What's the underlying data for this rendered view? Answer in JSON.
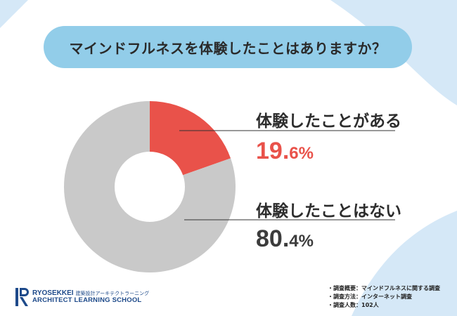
{
  "title": "マインドフルネスを体験したことはありますか？",
  "chart_data": {
    "type": "pie",
    "labels": [
      "体験したことがある",
      "体験したことはない"
    ],
    "values": [
      19.6,
      80.4
    ],
    "colors": [
      "#e9524a",
      "#c9c9c9"
    ],
    "value_labels": [
      {
        "main": "19.",
        "decimal": "6%",
        "color": "#e9524a"
      },
      {
        "main": "80.",
        "decimal": "4%",
        "color": "#3c3c3c"
      }
    ],
    "hole": "donut"
  },
  "logo": {
    "line1": "RYOSEKKEI",
    "line1_sub": "建築設計アーキテクトラーニング",
    "line2": "ARCHITECT LEARNING SCHOOL"
  },
  "notes": [
    "・調査概要：マインドフルネスに関する調査",
    "・調査方法：インターネット調査",
    "・調査人数：102人"
  ]
}
